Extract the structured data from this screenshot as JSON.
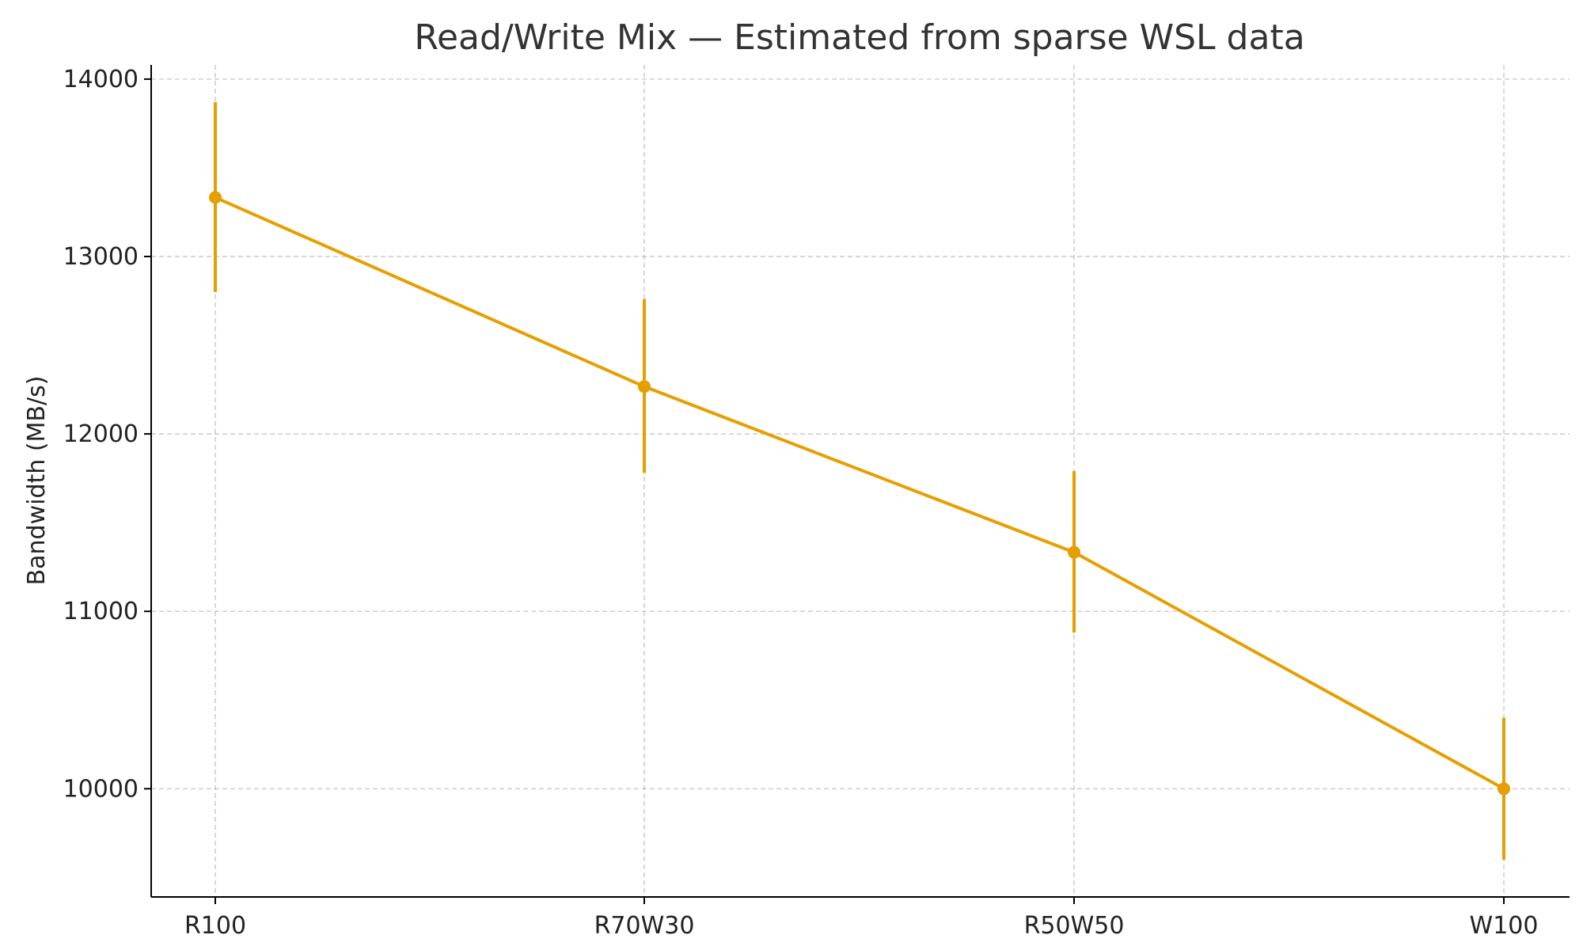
{
  "chart_data": {
    "type": "line",
    "title": "Read/Write Mix — Estimated from sparse WSL data",
    "xlabel": "",
    "ylabel": "Bandwidth (MB/s)",
    "categories": [
      "R100",
      "R70W30",
      "R50W50",
      "W100"
    ],
    "ylim": [
      9390,
      14080
    ],
    "yticks": [
      10000,
      11000,
      12000,
      13000,
      14000
    ],
    "grid": true,
    "series": [
      {
        "values": [
          13333,
          12267,
          11333,
          10000
        ],
        "error_low": [
          12800,
          11780,
          10880,
          9600
        ],
        "error_high": [
          13870,
          12760,
          11790,
          10400
        ],
        "color": "#E69F00"
      }
    ]
  }
}
